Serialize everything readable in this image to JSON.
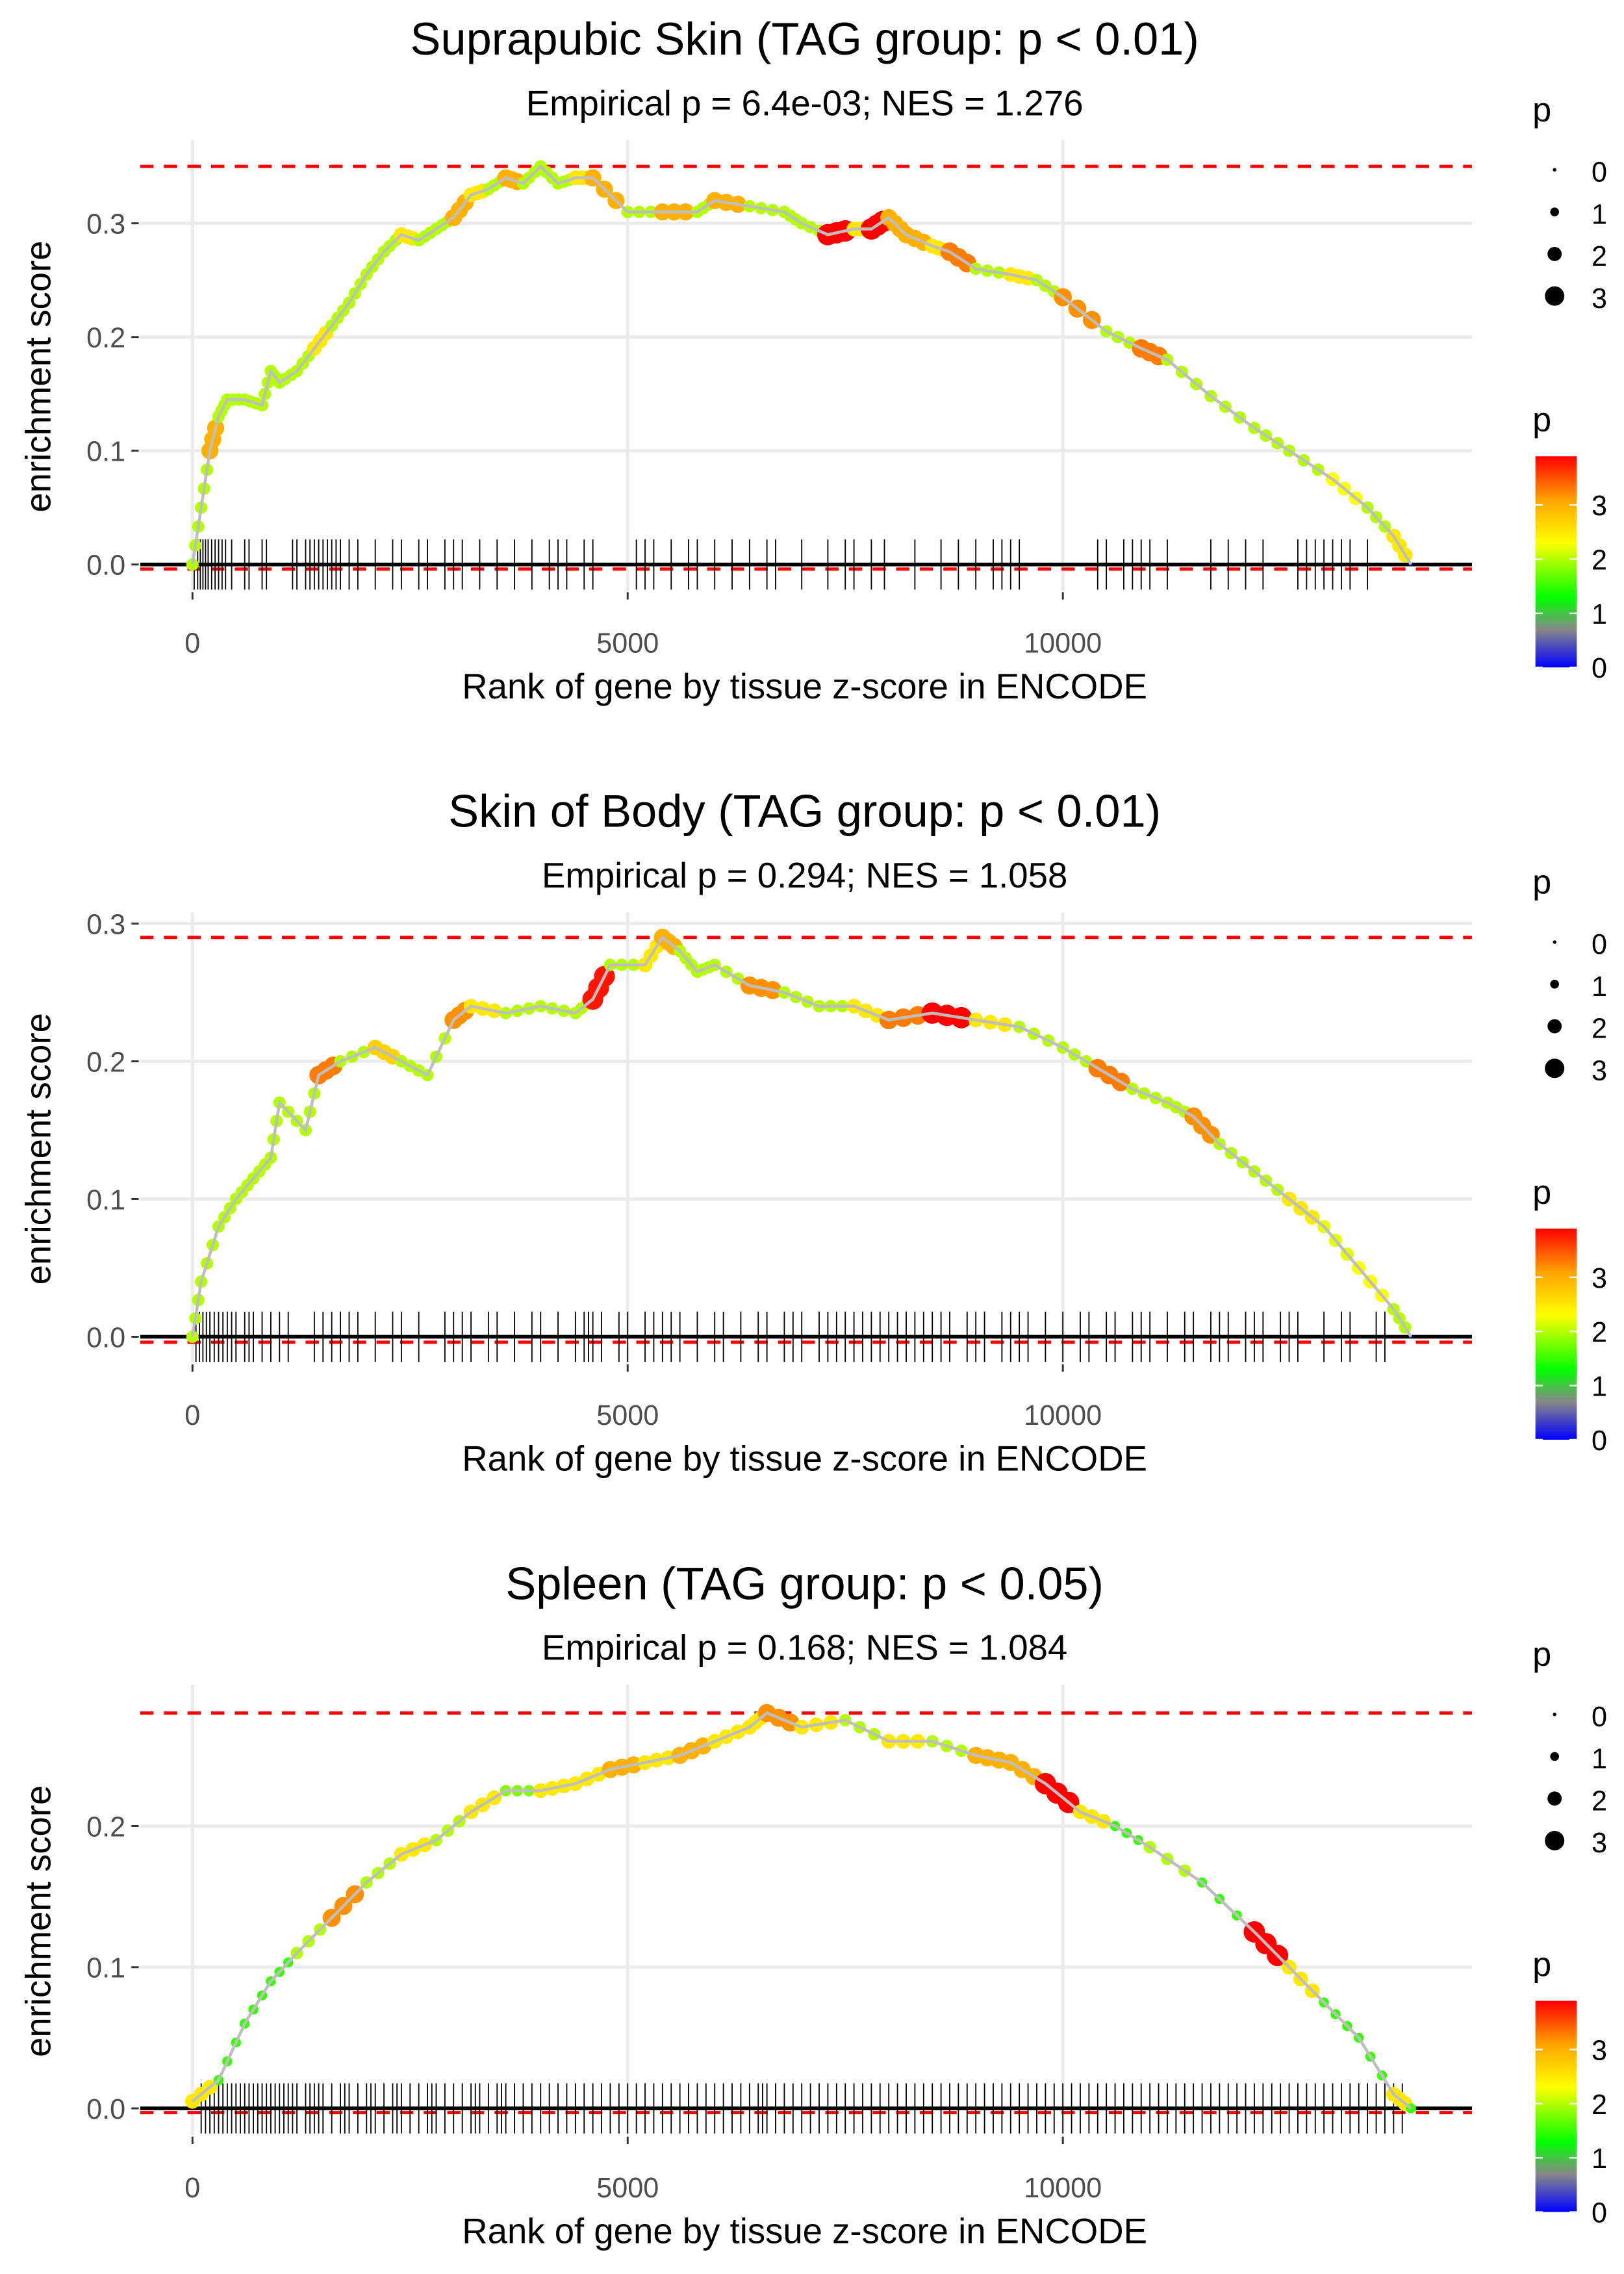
{
  "chart_data": [
    {
      "type": "line",
      "title": "Suprapubic Skin (TAG group: p < 0.01)",
      "subtitle": "Empirical p = 6.4e-03; NES = 1.276",
      "xlabel": "Rank of gene by tissue z-score in ENCODE",
      "ylabel": "enrichment score",
      "xlim": [
        -600,
        14700
      ],
      "ylim": [
        -0.023,
        0.373
      ],
      "xticks": [
        0,
        5000,
        10000
      ],
      "xtick_labels": [
        "0",
        "5000",
        "10000"
      ],
      "yticks": [
        0.0,
        0.1,
        0.2,
        0.3
      ],
      "ytick_labels": [
        "0.0",
        "0.1",
        "0.2",
        "0.3"
      ],
      "max_es": 0.35,
      "min_es": -0.004,
      "curve": [
        [
          0,
          0,
          2
        ],
        [
          100,
          0.05,
          2
        ],
        [
          200,
          0.1,
          3
        ],
        [
          300,
          0.13,
          2
        ],
        [
          400,
          0.145,
          2
        ],
        [
          600,
          0.145,
          2
        ],
        [
          800,
          0.14,
          2
        ],
        [
          900,
          0.17,
          2
        ],
        [
          1000,
          0.16,
          2
        ],
        [
          1200,
          0.17,
          2
        ],
        [
          1400,
          0.19,
          2.5
        ],
        [
          1600,
          0.21,
          2
        ],
        [
          1800,
          0.23,
          2
        ],
        [
          2000,
          0.255,
          2
        ],
        [
          2200,
          0.275,
          2
        ],
        [
          2400,
          0.29,
          2.5
        ],
        [
          2600,
          0.285,
          2
        ],
        [
          2800,
          0.295,
          2
        ],
        [
          3000,
          0.305,
          3
        ],
        [
          3200,
          0.325,
          2.5
        ],
        [
          3400,
          0.33,
          2
        ],
        [
          3600,
          0.34,
          3
        ],
        [
          3800,
          0.335,
          2
        ],
        [
          4000,
          0.35,
          2
        ],
        [
          4200,
          0.335,
          2
        ],
        [
          4400,
          0.34,
          2.5
        ],
        [
          4600,
          0.34,
          3
        ],
        [
          5000,
          0.31,
          2
        ],
        [
          5400,
          0.31,
          3
        ],
        [
          5800,
          0.31,
          2
        ],
        [
          6000,
          0.32,
          3
        ],
        [
          6400,
          0.315,
          2
        ],
        [
          6800,
          0.31,
          2
        ],
        [
          7000,
          0.3,
          2
        ],
        [
          7300,
          0.29,
          3.9
        ],
        [
          7600,
          0.295,
          2.5
        ],
        [
          7800,
          0.295,
          3.9
        ],
        [
          8000,
          0.305,
          3
        ],
        [
          8200,
          0.29,
          3
        ],
        [
          8500,
          0.28,
          2.5
        ],
        [
          8700,
          0.275,
          3.3
        ],
        [
          9000,
          0.26,
          2
        ],
        [
          9400,
          0.255,
          2.5
        ],
        [
          9700,
          0.25,
          2
        ],
        [
          10000,
          0.235,
          3.2
        ],
        [
          10500,
          0.205,
          2
        ],
        [
          10900,
          0.19,
          3.3
        ],
        [
          11200,
          0.18,
          2
        ],
        [
          11700,
          0.148,
          2
        ],
        [
          12200,
          0.12,
          2
        ],
        [
          12600,
          0.1,
          2
        ],
        [
          13100,
          0.075,
          2.3
        ],
        [
          13500,
          0.05,
          2
        ],
        [
          13800,
          0.025,
          2.5
        ],
        [
          14000,
          0,
          0
        ]
      ],
      "hits": [
        20,
        60,
        90,
        120,
        150,
        180,
        220,
        260,
        300,
        340,
        380,
        450,
        600,
        650,
        800,
        850,
        1150,
        1200,
        1300,
        1350,
        1400,
        1450,
        1500,
        1550,
        1600,
        1650,
        1700,
        1800,
        1900,
        2100,
        2300,
        2400,
        2600,
        2700,
        2900,
        3000,
        3100,
        3300,
        3500,
        3700,
        3900,
        4100,
        4200,
        4300,
        4500,
        4600,
        5100,
        5200,
        5300,
        5500,
        5700,
        5800,
        6000,
        6200,
        6400,
        6600,
        6700,
        7000,
        7300,
        7500,
        7600,
        7800,
        7950,
        8300,
        8600,
        8800,
        9000,
        9200,
        9300,
        9400,
        9500,
        10400,
        10500,
        10700,
        10800,
        10900,
        11000,
        11200,
        11700,
        11900,
        12100,
        12300,
        12700,
        12800,
        12900,
        13000,
        13100,
        13200,
        13300,
        13500
      ]
    },
    {
      "type": "line",
      "title": "Skin of Body (TAG group: p < 0.01)",
      "subtitle": "Empirical p = 0.294; NES = 1.058",
      "xlabel": "Rank of gene by tissue z-score in ENCODE",
      "ylabel": "enrichment score",
      "xlim": [
        -600,
        14700
      ],
      "ylim": [
        -0.019,
        0.308
      ],
      "xticks": [
        0,
        5000,
        10000
      ],
      "xtick_labels": [
        "0",
        "5000",
        "10000"
      ],
      "yticks": [
        0.0,
        0.1,
        0.2,
        0.3
      ],
      "ytick_labels": [
        "0.0",
        "0.1",
        "0.2",
        "0.3"
      ],
      "max_es": 0.29,
      "min_es": -0.004,
      "curve": [
        [
          0,
          0,
          2
        ],
        [
          100,
          0.04,
          2
        ],
        [
          300,
          0.08,
          2
        ],
        [
          500,
          0.1,
          2
        ],
        [
          700,
          0.115,
          2
        ],
        [
          900,
          0.13,
          2
        ],
        [
          1000,
          0.17,
          2
        ],
        [
          1300,
          0.15,
          2
        ],
        [
          1450,
          0.19,
          3.3
        ],
        [
          1700,
          0.2,
          2
        ],
        [
          2100,
          0.21,
          2.7
        ],
        [
          2400,
          0.2,
          2
        ],
        [
          2700,
          0.19,
          2
        ],
        [
          3000,
          0.23,
          3.2
        ],
        [
          3200,
          0.24,
          2.5
        ],
        [
          3600,
          0.235,
          2
        ],
        [
          4000,
          0.24,
          2
        ],
        [
          4400,
          0.235,
          2
        ],
        [
          4600,
          0.245,
          3.8
        ],
        [
          4800,
          0.27,
          2
        ],
        [
          5200,
          0.27,
          2.5
        ],
        [
          5400,
          0.29,
          3
        ],
        [
          5600,
          0.28,
          2
        ],
        [
          5800,
          0.265,
          2
        ],
        [
          6000,
          0.27,
          2
        ],
        [
          6400,
          0.255,
          3.2
        ],
        [
          6800,
          0.25,
          2
        ],
        [
          7200,
          0.24,
          2
        ],
        [
          7600,
          0.24,
          2.5
        ],
        [
          8000,
          0.23,
          3.3
        ],
        [
          8500,
          0.235,
          3.9
        ],
        [
          9000,
          0.23,
          2.5
        ],
        [
          9500,
          0.225,
          2
        ],
        [
          10000,
          0.21,
          2
        ],
        [
          10400,
          0.195,
          3.3
        ],
        [
          10800,
          0.18,
          2
        ],
        [
          11200,
          0.17,
          2
        ],
        [
          11500,
          0.16,
          3.2
        ],
        [
          11800,
          0.14,
          2
        ],
        [
          12200,
          0.12,
          2
        ],
        [
          12600,
          0.1,
          2.5
        ],
        [
          13000,
          0.08,
          2.2
        ],
        [
          13400,
          0.05,
          2.3
        ],
        [
          13800,
          0.02,
          2
        ],
        [
          14000,
          0,
          0
        ]
      ],
      "hits": [
        40,
        80,
        120,
        160,
        200,
        250,
        300,
        350,
        400,
        450,
        500,
        600,
        650,
        700,
        800,
        900,
        1000,
        1100,
        1400,
        1500,
        1600,
        1700,
        1800,
        1900,
        2100,
        2300,
        2400,
        2600,
        2900,
        3000,
        3100,
        3200,
        3400,
        3500,
        3700,
        3900,
        4000,
        4200,
        4400,
        4500,
        4550,
        4600,
        4700,
        4900,
        5000,
        5200,
        5300,
        5400,
        5500,
        5600,
        5800,
        6000,
        6100,
        6300,
        6500,
        6600,
        6800,
        6900,
        7000,
        7200,
        7300,
        7400,
        7500,
        7600,
        7700,
        7800,
        7900,
        8000,
        8100,
        8200,
        8300,
        8400,
        8500,
        8600,
        8700,
        8900,
        9000,
        9100,
        9300,
        9400,
        9500,
        9600,
        9800,
        10000,
        10200,
        10300,
        10500,
        10600,
        10800,
        10900,
        11000,
        11200,
        11400,
        11500,
        11700,
        11800,
        11900,
        12100,
        12200,
        12300,
        12500,
        12600,
        12700,
        13000,
        13200,
        13300,
        13600,
        13700
      ]
    },
    {
      "type": "line",
      "title": "Spleen (TAG group: p < 0.05)",
      "subtitle": "Empirical p = 0.168; NES = 1.084",
      "xlabel": "Rank of gene by tissue z-score in ENCODE",
      "ylabel": "enrichment score",
      "xlim": [
        -600,
        14700
      ],
      "ylim": [
        -0.019,
        0.3
      ],
      "xticks": [
        0,
        5000,
        10000
      ],
      "xtick_labels": [
        "0",
        "5000",
        "10000"
      ],
      "yticks": [
        0.0,
        0.1,
        0.2
      ],
      "ytick_labels": [
        "0.0",
        "0.1",
        "0.2"
      ],
      "max_es": 0.28,
      "min_es": -0.003,
      "curve": [
        [
          0,
          0.005,
          2.5
        ],
        [
          300,
          0.02,
          1.5
        ],
        [
          600,
          0.06,
          1.5
        ],
        [
          900,
          0.09,
          1.5
        ],
        [
          1200,
          0.11,
          2
        ],
        [
          1600,
          0.135,
          3.2
        ],
        [
          2000,
          0.16,
          2
        ],
        [
          2400,
          0.18,
          2.5
        ],
        [
          2800,
          0.19,
          2
        ],
        [
          3200,
          0.21,
          2.5
        ],
        [
          3600,
          0.225,
          1.8
        ],
        [
          4000,
          0.225,
          2.5
        ],
        [
          4400,
          0.23,
          2.5
        ],
        [
          4800,
          0.24,
          3
        ],
        [
          5200,
          0.245,
          2.5
        ],
        [
          5600,
          0.25,
          3
        ],
        [
          6000,
          0.26,
          2.5
        ],
        [
          6400,
          0.27,
          2.5
        ],
        [
          6600,
          0.28,
          3.2
        ],
        [
          7000,
          0.27,
          2.5
        ],
        [
          7500,
          0.275,
          2
        ],
        [
          8000,
          0.26,
          2.5
        ],
        [
          8500,
          0.26,
          2
        ],
        [
          9000,
          0.25,
          3
        ],
        [
          9400,
          0.245,
          3
        ],
        [
          9800,
          0.23,
          3.9
        ],
        [
          10200,
          0.21,
          2.5
        ],
        [
          10600,
          0.2,
          1.5
        ],
        [
          11000,
          0.185,
          2
        ],
        [
          11600,
          0.16,
          1.5
        ],
        [
          12200,
          0.125,
          3.9
        ],
        [
          12600,
          0.1,
          2.5
        ],
        [
          13000,
          0.075,
          1.5
        ],
        [
          13400,
          0.05,
          1.5
        ],
        [
          13800,
          0.01,
          2.5
        ],
        [
          14000,
          0,
          1.5
        ]
      ],
      "hits": [
        100,
        150,
        200,
        250,
        300,
        350,
        400,
        450,
        500,
        550,
        600,
        650,
        700,
        750,
        800,
        850,
        900,
        950,
        1000,
        1050,
        1100,
        1150,
        1200,
        1300,
        1350,
        1400,
        1450,
        1500,
        1600,
        1700,
        1750,
        1800,
        1900,
        2000,
        2050,
        2100,
        2200,
        2300,
        2350,
        2400,
        2500,
        2600,
        2700,
        2750,
        2800,
        2900,
        3000,
        3100,
        3200,
        3250,
        3300,
        3400,
        3500,
        3550,
        3600,
        3700,
        3800,
        3900,
        4000,
        4100,
        4200,
        4300,
        4400,
        4500,
        4600,
        4700,
        4800,
        4900,
        5000,
        5100,
        5200,
        5300,
        5400,
        5500,
        5600,
        5700,
        5800,
        5900,
        6000,
        6100,
        6200,
        6300,
        6400,
        6500,
        6550,
        6600,
        6700,
        6800,
        6900,
        7000,
        7100,
        7200,
        7300,
        7400,
        7500,
        7600,
        7700,
        7800,
        7900,
        8000,
        8100,
        8200,
        8300,
        8400,
        8500,
        8600,
        8700,
        8800,
        8900,
        9000,
        9100,
        9200,
        9300,
        9400,
        9500,
        9600,
        9700,
        9800,
        9900,
        10000,
        10100,
        10200,
        10300,
        10400,
        10500,
        10600,
        10700,
        10800,
        10900,
        11000,
        11100,
        11200,
        11300,
        11400,
        11500,
        11600,
        11700,
        11800,
        11900,
        12000,
        12100,
        12200,
        12300,
        12400,
        12500,
        12600,
        12700,
        12800,
        12900,
        13000,
        13100,
        13200,
        13300,
        13400,
        13500,
        13600,
        13700,
        13800,
        13900
      ]
    }
  ],
  "legend": {
    "size_title": "p",
    "size_labels": [
      "0",
      "1",
      "2",
      "3"
    ],
    "color_title": "p",
    "color_labels": [
      "3",
      "2",
      "1",
      "0"
    ],
    "color_range": [
      0,
      3.9
    ]
  },
  "colors": {
    "red_dashed": "#ff0000",
    "curve_line": "#bebebe",
    "grid": "#ebebeb",
    "gradient": [
      "#0000ff",
      "#888888",
      "#00ff00",
      "#ffff00",
      "#ffa500",
      "#ff0000"
    ]
  }
}
